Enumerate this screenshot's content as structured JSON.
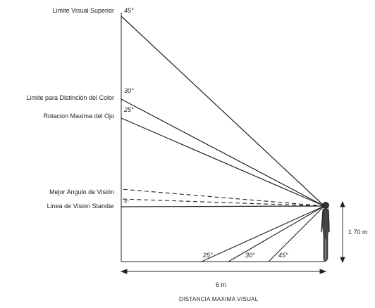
{
  "labels": {
    "limite_superior": "Limite Visual Superior",
    "limite_color": "Limite para Distinción del Color",
    "rotacion_ojo": "Rotacion Maxima del Ojo",
    "mejor_angulo": "Mejor Angulo de Visión",
    "linea_standar": "Linea de Vision Standar"
  },
  "angles_upper": {
    "a45": "45°",
    "a30": "30°",
    "a25": "25°",
    "a_small": "5°"
  },
  "angles_lower": {
    "a25": "25°",
    "a30": "30°",
    "a45": "45°"
  },
  "dimensions": {
    "height": "1 70 m",
    "distance": "6 m"
  },
  "caption": "DISTANCIA  MAXIMA VISUAL"
}
